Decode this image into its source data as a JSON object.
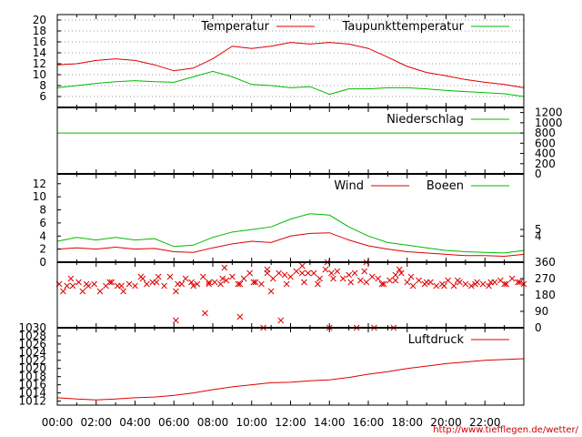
{
  "colors": {
    "red": "#dd0000",
    "green": "#00bb00",
    "axis": "#000000",
    "grid": "#999999",
    "url": "#cc0000"
  },
  "x_axis": {
    "ticks": [
      "00:00",
      "02:00",
      "04:00",
      "06:00",
      "08:00",
      "10:00",
      "12:00",
      "14:00",
      "16:00",
      "18:00",
      "20:00",
      "22:00"
    ],
    "range_hours": [
      0,
      24
    ]
  },
  "source_url": "http://www.tiefflegen.de/wetter/",
  "chart_data": [
    {
      "type": "line",
      "legend": [
        "Temperatur",
        "Taupunkttemperatur"
      ],
      "y_ticks_left": [
        "6",
        "8",
        "10",
        "12",
        "14",
        "16",
        "18",
        "20"
      ],
      "ylim": [
        4,
        21
      ],
      "grid": true,
      "legend_placement": "top-right",
      "x_hours": [
        0,
        1,
        2,
        3,
        4,
        5,
        6,
        7,
        8,
        9,
        10,
        11,
        12,
        13,
        14,
        15,
        16,
        17,
        18,
        19,
        20,
        21,
        22,
        23,
        24
      ],
      "series": [
        {
          "name": "Temperatur",
          "color": "red",
          "values": [
            11.8,
            12.0,
            12.6,
            12.9,
            12.6,
            11.8,
            10.7,
            11.2,
            12.9,
            15.2,
            14.8,
            15.2,
            15.9,
            15.6,
            15.9,
            15.6,
            14.8,
            13.2,
            11.5,
            10.4,
            9.8,
            9.1,
            8.6,
            8.2,
            7.6
          ]
        },
        {
          "name": "Taupunkttemperatur",
          "color": "green",
          "values": [
            7.6,
            8.0,
            8.4,
            8.7,
            8.9,
            8.7,
            8.6,
            9.6,
            10.6,
            9.6,
            8.2,
            8.0,
            7.6,
            7.8,
            6.4,
            7.4,
            7.4,
            7.6,
            7.6,
            7.4,
            7.1,
            6.9,
            6.7,
            6.5,
            6.0
          ]
        }
      ]
    },
    {
      "type": "line",
      "legend": [
        "Niederschlag"
      ],
      "y_ticks_right": [
        "0",
        "200",
        "400",
        "600",
        "800",
        "1000",
        "1200"
      ],
      "ylim": [
        0,
        1300
      ],
      "grid": false,
      "legend_placement": "top-right",
      "x_hours": [
        0,
        24
      ],
      "series": [
        {
          "name": "Niederschlag",
          "color": "green",
          "values": [
            800,
            800
          ]
        }
      ]
    },
    {
      "type": "line",
      "legend": [
        "Wind",
        "Boeen"
      ],
      "y_ticks_left": [
        "0",
        "2",
        "4",
        "6",
        "8",
        "10",
        "12"
      ],
      "y_ticks_right": [
        "4",
        "5"
      ],
      "ylim": [
        0,
        13.5
      ],
      "grid": false,
      "legend_placement": "top-right",
      "x_hours": [
        0,
        1,
        2,
        3,
        4,
        5,
        6,
        7,
        8,
        9,
        10,
        11,
        12,
        13,
        14,
        15,
        16,
        17,
        18,
        19,
        20,
        21,
        22,
        23,
        24
      ],
      "series": [
        {
          "name": "Wind",
          "color": "red",
          "values": [
            2.0,
            2.2,
            2.0,
            2.3,
            2.0,
            2.1,
            1.6,
            1.5,
            2.2,
            2.8,
            3.2,
            3.0,
            4.0,
            4.4,
            4.5,
            3.4,
            2.5,
            2.0,
            1.6,
            1.4,
            1.2,
            1.0,
            1.0,
            0.9,
            1.2
          ]
        },
        {
          "name": "Boeen",
          "color": "green",
          "values": [
            3.2,
            3.8,
            3.4,
            3.8,
            3.4,
            3.6,
            2.4,
            2.6,
            3.8,
            4.6,
            5.0,
            5.4,
            6.6,
            7.4,
            7.2,
            5.4,
            4.0,
            3.0,
            2.6,
            2.2,
            1.8,
            1.6,
            1.5,
            1.4,
            1.8
          ]
        }
      ]
    },
    {
      "type": "scatter",
      "y_ticks_right": [
        "0",
        "90",
        "180",
        "270",
        "360"
      ],
      "ylim": [
        0,
        360
      ],
      "grid": false,
      "series": [
        {
          "name": "",
          "color": "red",
          "marker": "x",
          "x": [
            0.1,
            0.3,
            0.5,
            0.8,
            1.1,
            1.3,
            1.6,
            1.9,
            2.2,
            2.5,
            2.8,
            3.1,
            3.4,
            3.7,
            4.0,
            4.3,
            4.6,
            4.9,
            5.2,
            5.5,
            5.8,
            6.1,
            6.4,
            6.6,
            6.9,
            7.2,
            7.5,
            7.8,
            8.1,
            8.4,
            8.7,
            9.0,
            9.3,
            9.6,
            9.9,
            10.2,
            10.5,
            10.8,
            11.1,
            11.4,
            11.7,
            12.0,
            12.3,
            12.6,
            12.9,
            13.2,
            13.5,
            13.8,
            14.1,
            14.4,
            14.7,
            15.0,
            15.3,
            15.6,
            15.9,
            16.2,
            16.5,
            16.8,
            17.1,
            17.4,
            17.7,
            18.0,
            18.3,
            18.6,
            18.9,
            19.2,
            19.5,
            19.8,
            20.1,
            20.4,
            20.7,
            21.0,
            21.3,
            21.6,
            21.9,
            22.2,
            22.5,
            22.8,
            23.1,
            23.4,
            23.7,
            24.0,
            0.7,
            1.5,
            2.7,
            3.3,
            4.4,
            5.1,
            6.2,
            7.0,
            7.8,
            8.5,
            9.4,
            10.1,
            11.0,
            11.8,
            12.7,
            13.4,
            14.2,
            15.1,
            15.8,
            16.7,
            17.4,
            18.2,
            19.0,
            19.9,
            20.6,
            21.5,
            22.3,
            23.0,
            23.8,
            6.1,
            7.6,
            9.4,
            11.5,
            10.6,
            14.0,
            15.4,
            16.3,
            17.3,
            8.6,
            10.8,
            12.6,
            13.9,
            15.9,
            17.6
          ],
          "y": [
            240,
            200,
            230,
            230,
            250,
            200,
            230,
            240,
            200,
            230,
            250,
            230,
            200,
            240,
            230,
            280,
            240,
            250,
            280,
            230,
            280,
            200,
            240,
            270,
            250,
            240,
            280,
            240,
            250,
            240,
            260,
            280,
            240,
            270,
            300,
            250,
            240,
            300,
            270,
            300,
            290,
            280,
            310,
            300,
            300,
            300,
            270,
            320,
            300,
            310,
            270,
            290,
            300,
            260,
            250,
            280,
            270,
            240,
            260,
            290,
            300,
            250,
            230,
            260,
            240,
            250,
            230,
            240,
            260,
            230,
            250,
            240,
            230,
            250,
            240,
            230,
            250,
            260,
            240,
            270,
            250,
            240,
            270,
            240,
            250,
            230,
            270,
            250,
            240,
            230,
            250,
            270,
            240,
            250,
            200,
            240,
            250,
            240,
            270,
            250,
            310,
            240,
            260,
            280,
            250,
            230,
            260,
            240,
            250,
            240,
            250,
            40,
            80,
            60,
            40,
            0,
            0,
            0,
            0,
            0,
            330,
            320,
            340,
            360,
            360,
            320
          ]
        }
      ]
    },
    {
      "type": "line",
      "legend": [
        "Luftdruck"
      ],
      "y_ticks_left": [
        "1012",
        "1014",
        "1016",
        "1018",
        "1020",
        "1022",
        "1024",
        "1026",
        "1028",
        "1030"
      ],
      "ylim": [
        1011,
        1030
      ],
      "grid": false,
      "legend_placement": "top-right",
      "x_hours": [
        0,
        1,
        2,
        3,
        4,
        5,
        6,
        7,
        8,
        9,
        10,
        11,
        12,
        13,
        14,
        15,
        16,
        17,
        18,
        19,
        20,
        21,
        22,
        23,
        24
      ],
      "series": [
        {
          "name": "Luftdruck",
          "color": "red",
          "values": [
            1012.8,
            1012.5,
            1012.3,
            1012.5,
            1012.8,
            1013.0,
            1013.4,
            1014.0,
            1014.8,
            1015.5,
            1016.0,
            1016.5,
            1016.6,
            1017.0,
            1017.2,
            1017.8,
            1018.6,
            1019.2,
            1020.0,
            1020.6,
            1021.2,
            1021.6,
            1022.0,
            1022.2,
            1022.4
          ]
        }
      ]
    }
  ]
}
